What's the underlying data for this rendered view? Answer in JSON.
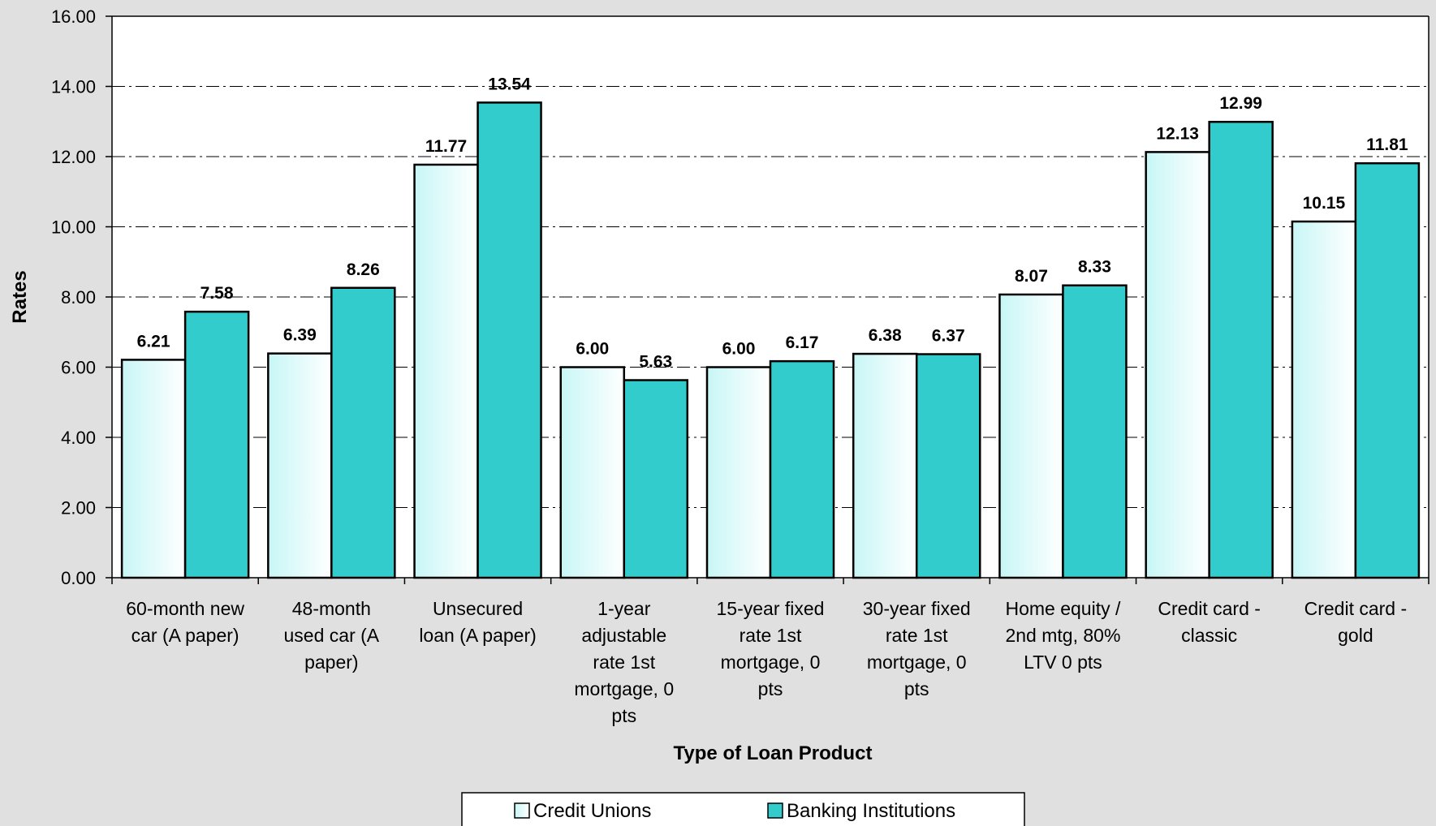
{
  "chart_data": {
    "type": "bar",
    "title": "",
    "xlabel": "Type of Loan Product",
    "ylabel": "Rates",
    "ylim": [
      0,
      16
    ],
    "y_ticks": [
      "0.00",
      "2.00",
      "4.00",
      "6.00",
      "8.00",
      "10.00",
      "12.00",
      "14.00",
      "16.00"
    ],
    "grid": "horizontal dash-dot",
    "legend_position": "bottom",
    "categories": [
      "60-month new car (A paper)",
      "48-month used car (A paper)",
      "Unsecured loan (A paper)",
      "1-year adjustable rate 1st mortgage, 0 pts",
      "15-year fixed rate 1st mortgage, 0 pts",
      "30-year fixed rate 1st mortgage, 0 pts",
      "Home equity / 2nd mtg, 80% LTV 0 pts",
      "Credit card - classic",
      "Credit card - gold"
    ],
    "category_lines": [
      [
        "60-month new",
        "car (A paper)"
      ],
      [
        "48-month",
        "used car (A",
        "paper)"
      ],
      [
        "Unsecured",
        "loan (A paper)"
      ],
      [
        "1-year",
        "adjustable",
        "rate 1st",
        "mortgage, 0",
        "pts"
      ],
      [
        "15-year fixed",
        "rate 1st",
        "mortgage, 0",
        "pts"
      ],
      [
        "30-year fixed",
        "rate 1st",
        "mortgage, 0",
        "pts"
      ],
      [
        "Home equity /",
        "2nd mtg, 80%",
        "LTV 0 pts"
      ],
      [
        "Credit card -",
        "classic"
      ],
      [
        "Credit card -",
        "gold"
      ]
    ],
    "series": [
      {
        "name": "Credit Unions",
        "values": [
          6.21,
          6.39,
          11.77,
          6.0,
          6.0,
          6.38,
          8.07,
          12.13,
          10.15
        ],
        "labels": [
          "6.21",
          "6.39",
          "11.77",
          "6.00",
          "6.00",
          "6.38",
          "8.07",
          "12.13",
          "10.15"
        ],
        "color": "#e6fcfc"
      },
      {
        "name": "Banking Institutions",
        "values": [
          7.58,
          8.26,
          13.54,
          5.63,
          6.17,
          6.37,
          8.33,
          12.99,
          11.81
        ],
        "labels": [
          "7.58",
          "8.26",
          "13.54",
          "5.63",
          "6.17",
          "6.37",
          "8.33",
          "12.99",
          "11.81"
        ],
        "color": "#33cccc"
      }
    ]
  }
}
